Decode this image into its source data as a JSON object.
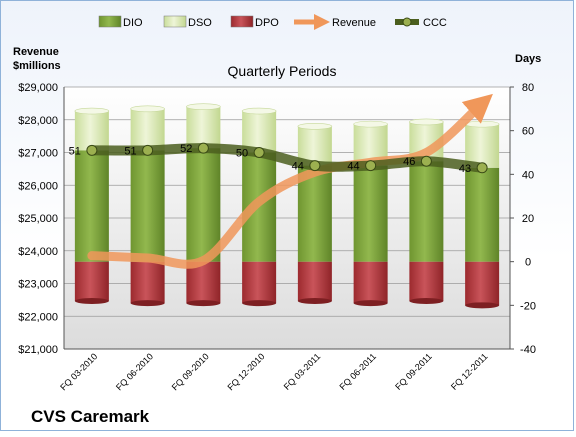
{
  "chart_data": {
    "type": "bar",
    "title": "Quarterly Periods",
    "company": "CVS Caremark",
    "y_left_title": [
      "Revenue",
      "$millions"
    ],
    "y_right_title": "Days",
    "y_left_range": [
      21000,
      29000
    ],
    "y_left_ticks": [
      "$21,000",
      "$22,000",
      "$23,000",
      "$24,000",
      "$25,000",
      "$26,000",
      "$27,000",
      "$28,000",
      "$29,000"
    ],
    "y_right_range": [
      -40,
      80
    ],
    "y_right_ticks": [
      "-40",
      "-20",
      "0",
      "20",
      "40",
      "60",
      "80"
    ],
    "categories": [
      "FQ 03-2010",
      "FQ 06-2010",
      "FQ 09-2010",
      "FQ 12-2010",
      "FQ 03-2011",
      "FQ 06-2011",
      "FQ 09-2011",
      "FQ 12-2011"
    ],
    "legend": [
      "DIO",
      "DSO",
      "DPO",
      "Revenue",
      "CCC"
    ],
    "series": [
      {
        "name": "DIO",
        "axis": "days",
        "values": [
          51,
          51,
          52,
          50,
          44,
          44,
          46,
          43
        ]
      },
      {
        "name": "DSO",
        "axis": "days",
        "values": [
          18,
          19,
          19,
          19,
          18,
          19,
          18,
          20
        ]
      },
      {
        "name": "DPO",
        "axis": "days",
        "values": [
          -18,
          -19,
          -19,
          -19,
          -18,
          -19,
          -18,
          -20
        ]
      },
      {
        "name": "Revenue",
        "axis": "revenue",
        "values": [
          23850,
          23780,
          23700,
          25500,
          26400,
          26700,
          27000,
          28500
        ]
      },
      {
        "name": "CCC",
        "axis": "days",
        "values": [
          51,
          51,
          52,
          50,
          44,
          44,
          46,
          43
        ]
      }
    ],
    "data_labels": [
      "51",
      "51",
      "52",
      "50",
      "44",
      "44",
      "46",
      "43"
    ],
    "colors": {
      "DIO": "#7fa63c",
      "DSO": "#dbe8b4",
      "DPO": "#b5383c",
      "Revenue": "#f0a060",
      "CCC": "#4b5e1e"
    },
    "grid": true
  }
}
